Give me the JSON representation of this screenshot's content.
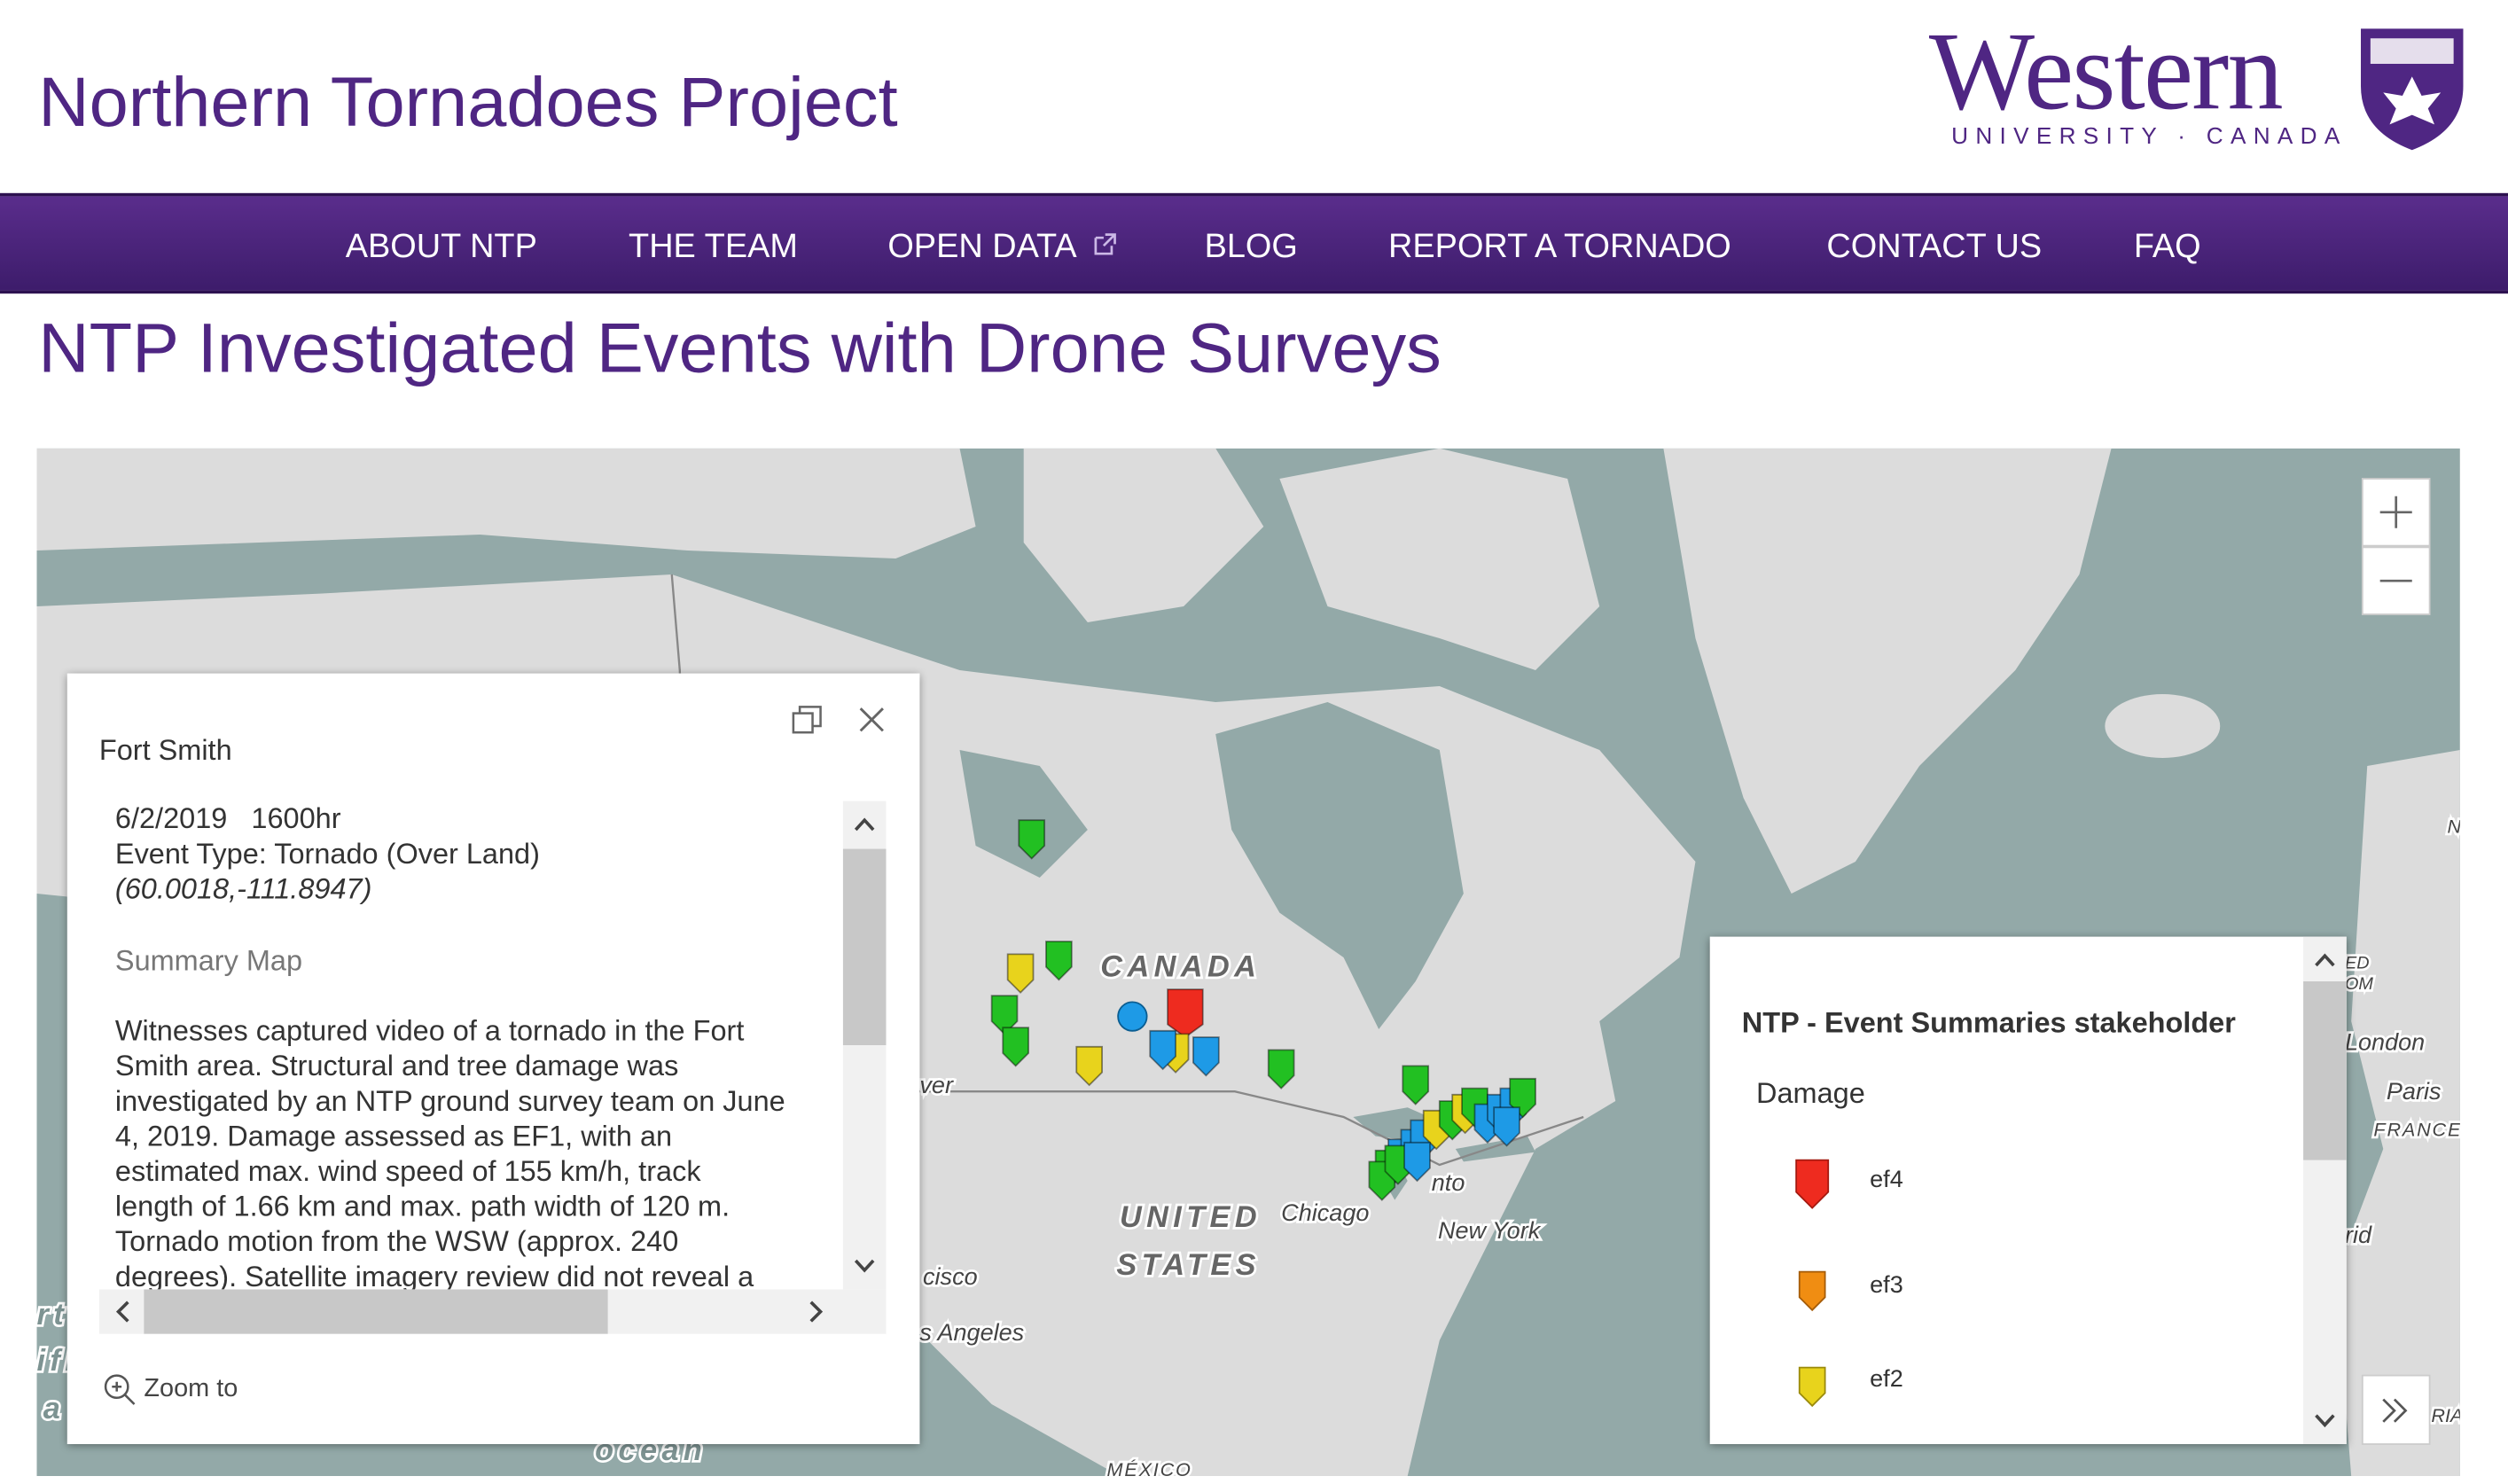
{
  "header": {
    "title": "Northern Tornadoes Project",
    "logo": {
      "name": "Western",
      "subtitle": "UNIVERSITY · CANADA"
    }
  },
  "nav": [
    "ABOUT NTP",
    "THE TEAM",
    "OPEN DATA",
    "BLOG",
    "REPORT A TORNADO",
    "CONTACT US",
    "FAQ"
  ],
  "heading": "NTP Investigated Events with Drone Surveys",
  "map": {
    "labels": [
      "CANADA",
      "UNITED",
      "STATES",
      "Chicago",
      "New York",
      "nto",
      "ver",
      "cisco",
      "s Angeles",
      "London",
      "Paris",
      "FRANCE",
      "rid",
      "ED",
      "OM",
      "RIA",
      "N",
      "MÉXICO",
      "ocean",
      "rt",
      "ifi",
      "a"
    ]
  },
  "popup": {
    "title": "Fort Smith",
    "date": "6/2/2019   1600hr",
    "event_type": "Event Type: Tornado (Over Land)",
    "coords": "(60.0018,-111.8947)",
    "link": "Summary Map",
    "description_lines": [
      "Witnesses captured video of a tornado in the Fort",
      "Smith area. Structural and tree damage was",
      "investigated by an NTP ground survey team on June",
      "4, 2019. Damage assessed as EF1, with an",
      "estimated max. wind speed of 155 km/h, track",
      "length of 1.66 km and max. path width of 120 m.",
      "Tornado motion from the WSW (approx. 240",
      "degrees). Satellite imagery review did not reveal a"
    ],
    "zoom": "Zoom to"
  },
  "legend": {
    "title": "NTP - Event Summaries stakeholder",
    "group": "Damage",
    "items": [
      "ef4",
      "ef3",
      "ef2"
    ]
  }
}
